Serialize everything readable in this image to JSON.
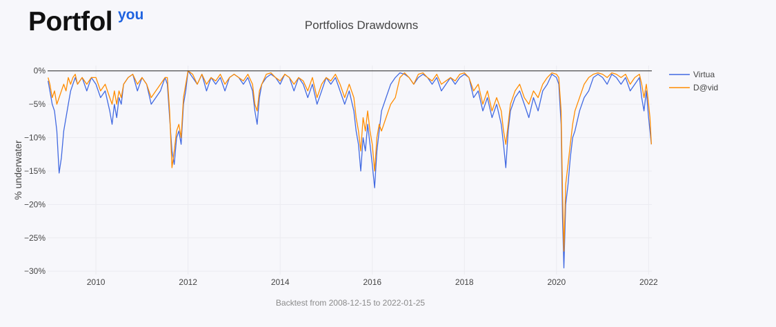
{
  "brand": {
    "name": "Portfol",
    "sup": "you",
    "accent": "#1f63e0"
  },
  "chart_data": {
    "type": "line",
    "title": "Portfolios Drawdowns",
    "xlabel": "Backtest from 2008-12-15 to 2022-01-25",
    "ylabel": "% underwater",
    "xlim": [
      2008.95,
      2022.07
    ],
    "ylim": [
      -30.5,
      0.8
    ],
    "xticks": [
      2010,
      2012,
      2014,
      2016,
      2018,
      2020,
      2022
    ],
    "yticks": [
      0,
      -5,
      -10,
      -15,
      -20,
      -25,
      -30
    ],
    "ytick_labels": [
      "0%",
      "−5%",
      "−10%",
      "−15%",
      "−20%",
      "−25%",
      "−30%"
    ],
    "grid": true,
    "legend_position": "top-right",
    "series": [
      {
        "name": "Virtua",
        "color": "#4169e1",
        "x": [
          2008.96,
          2009.0,
          2009.05,
          2009.1,
          2009.15,
          2009.2,
          2009.25,
          2009.3,
          2009.35,
          2009.4,
          2009.45,
          2009.5,
          2009.55,
          2009.6,
          2009.7,
          2009.8,
          2009.9,
          2010.0,
          2010.1,
          2010.2,
          2010.3,
          2010.35,
          2010.4,
          2010.45,
          2010.5,
          2010.55,
          2010.6,
          2010.7,
          2010.8,
          2010.9,
          2011.0,
          2011.1,
          2011.2,
          2011.3,
          2011.4,
          2011.5,
          2011.55,
          2011.6,
          2011.65,
          2011.7,
          2011.75,
          2011.8,
          2011.85,
          2011.9,
          2011.95,
          2012.0,
          2012.1,
          2012.2,
          2012.3,
          2012.4,
          2012.5,
          2012.6,
          2012.7,
          2012.8,
          2012.9,
          2013.0,
          2013.1,
          2013.2,
          2013.3,
          2013.4,
          2013.45,
          2013.5,
          2013.55,
          2013.6,
          2013.7,
          2013.8,
          2013.9,
          2014.0,
          2014.1,
          2014.2,
          2014.3,
          2014.4,
          2014.5,
          2014.6,
          2014.7,
          2014.8,
          2014.9,
          2015.0,
          2015.1,
          2015.2,
          2015.3,
          2015.4,
          2015.5,
          2015.6,
          2015.65,
          2015.7,
          2015.75,
          2015.8,
          2015.85,
          2015.9,
          2015.95,
          2016.0,
          2016.05,
          2016.1,
          2016.15,
          2016.2,
          2016.3,
          2016.4,
          2016.5,
          2016.6,
          2016.7,
          2016.8,
          2016.9,
          2017.0,
          2017.1,
          2017.2,
          2017.3,
          2017.4,
          2017.5,
          2017.6,
          2017.7,
          2017.8,
          2017.9,
          2018.0,
          2018.1,
          2018.2,
          2018.3,
          2018.4,
          2018.5,
          2018.6,
          2018.7,
          2018.8,
          2018.85,
          2018.9,
          2018.95,
          2019.0,
          2019.1,
          2019.2,
          2019.3,
          2019.4,
          2019.5,
          2019.6,
          2019.7,
          2019.8,
          2019.9,
          2020.0,
          2020.05,
          2020.1,
          2020.13,
          2020.16,
          2020.2,
          2020.25,
          2020.3,
          2020.35,
          2020.4,
          2020.5,
          2020.6,
          2020.7,
          2020.8,
          2020.9,
          2021.0,
          2021.1,
          2021.2,
          2021.3,
          2021.4,
          2021.5,
          2021.6,
          2021.7,
          2021.8,
          2021.85,
          2021.9,
          2021.95,
          2022.0,
          2022.03,
          2022.06
        ],
        "y": [
          -1.5,
          -3,
          -5,
          -6,
          -9,
          -15.3,
          -13,
          -9,
          -7,
          -5,
          -3,
          -2,
          -1,
          -2,
          -1,
          -3,
          -1,
          -2,
          -4,
          -3,
          -6,
          -8,
          -5,
          -7,
          -4,
          -5,
          -2,
          -1,
          -0.5,
          -3,
          -1,
          -2,
          -5,
          -4,
          -3,
          -1,
          -2,
          -7,
          -12,
          -14,
          -10,
          -9,
          -11,
          -5,
          -3,
          0,
          -1,
          -2,
          -0.5,
          -3,
          -1,
          -2,
          -1,
          -3,
          -1,
          -0.5,
          -1,
          -2,
          -1,
          -3,
          -6,
          -8,
          -4,
          -2,
          -1,
          -0.5,
          -1,
          -2,
          -0.5,
          -1,
          -3,
          -1,
          -2,
          -4,
          -2,
          -5,
          -3,
          -1,
          -2,
          -1,
          -3,
          -5,
          -3,
          -6,
          -9,
          -11,
          -15,
          -10,
          -12,
          -8,
          -11,
          -14,
          -17.5,
          -12,
          -9,
          -6,
          -4,
          -2,
          -1,
          -0.3,
          -0.5,
          -1,
          -2,
          -1,
          -0.5,
          -1,
          -2,
          -1,
          -3,
          -2,
          -1,
          -2,
          -1,
          -0.5,
          -1,
          -4,
          -3,
          -6,
          -4,
          -7,
          -5,
          -8,
          -11,
          -14.5,
          -9,
          -6,
          -4,
          -3,
          -5,
          -7,
          -4,
          -6,
          -3,
          -2,
          -0.5,
          -1,
          -2,
          -8,
          -22,
          -29.5,
          -20,
          -17,
          -13,
          -10,
          -9,
          -6,
          -4,
          -3,
          -1,
          -0.5,
          -1,
          -2,
          -0.5,
          -1,
          -2,
          -1,
          -3,
          -2,
          -1,
          -4,
          -6,
          -3,
          -7,
          -9,
          -11
        ]
      },
      {
        "name": "D@vid",
        "color": "#ff8c00",
        "x": [
          2008.96,
          2009.0,
          2009.05,
          2009.1,
          2009.15,
          2009.2,
          2009.25,
          2009.3,
          2009.35,
          2009.4,
          2009.45,
          2009.5,
          2009.55,
          2009.6,
          2009.7,
          2009.8,
          2009.9,
          2010.0,
          2010.1,
          2010.2,
          2010.3,
          2010.35,
          2010.4,
          2010.45,
          2010.5,
          2010.55,
          2010.6,
          2010.7,
          2010.8,
          2010.9,
          2011.0,
          2011.1,
          2011.2,
          2011.3,
          2011.4,
          2011.5,
          2011.55,
          2011.6,
          2011.65,
          2011.7,
          2011.75,
          2011.8,
          2011.85,
          2011.9,
          2011.95,
          2012.0,
          2012.1,
          2012.2,
          2012.3,
          2012.4,
          2012.5,
          2012.6,
          2012.7,
          2012.8,
          2012.9,
          2013.0,
          2013.1,
          2013.2,
          2013.3,
          2013.4,
          2013.45,
          2013.5,
          2013.55,
          2013.6,
          2013.7,
          2013.8,
          2013.9,
          2014.0,
          2014.1,
          2014.2,
          2014.3,
          2014.4,
          2014.5,
          2014.6,
          2014.7,
          2014.8,
          2014.9,
          2015.0,
          2015.1,
          2015.2,
          2015.3,
          2015.4,
          2015.5,
          2015.6,
          2015.65,
          2015.7,
          2015.75,
          2015.8,
          2015.85,
          2015.9,
          2015.95,
          2016.0,
          2016.05,
          2016.1,
          2016.15,
          2016.2,
          2016.3,
          2016.4,
          2016.5,
          2016.6,
          2016.7,
          2016.8,
          2016.9,
          2017.0,
          2017.1,
          2017.2,
          2017.3,
          2017.4,
          2017.5,
          2017.6,
          2017.7,
          2017.8,
          2017.9,
          2018.0,
          2018.1,
          2018.2,
          2018.3,
          2018.4,
          2018.5,
          2018.6,
          2018.7,
          2018.8,
          2018.85,
          2018.9,
          2018.95,
          2019.0,
          2019.1,
          2019.2,
          2019.3,
          2019.4,
          2019.5,
          2019.6,
          2019.7,
          2019.8,
          2019.9,
          2020.0,
          2020.05,
          2020.1,
          2020.13,
          2020.16,
          2020.2,
          2020.25,
          2020.3,
          2020.35,
          2020.4,
          2020.5,
          2020.6,
          2020.7,
          2020.8,
          2020.9,
          2021.0,
          2021.1,
          2021.2,
          2021.3,
          2021.4,
          2021.5,
          2021.6,
          2021.7,
          2021.8,
          2021.85,
          2021.9,
          2021.95,
          2022.0,
          2022.03,
          2022.06
        ],
        "y": [
          -1,
          -2,
          -4,
          -3,
          -5,
          -4,
          -3,
          -2,
          -3,
          -1,
          -2,
          -1,
          -0.5,
          -2,
          -1,
          -2,
          -1,
          -1,
          -3,
          -2,
          -4,
          -5,
          -3,
          -5,
          -3,
          -4,
          -2,
          -1,
          -0.5,
          -2,
          -1,
          -2,
          -4,
          -3,
          -2,
          -1,
          -1,
          -6,
          -14.5,
          -12,
          -9,
          -8,
          -10,
          -4,
          -2,
          0,
          -0.5,
          -2,
          -0.5,
          -2,
          -1,
          -1.5,
          -0.5,
          -2,
          -1,
          -0.5,
          -1,
          -1.5,
          -0.5,
          -2,
          -5,
          -6,
          -3,
          -2,
          -0.5,
          -0.3,
          -1,
          -1.5,
          -0.5,
          -1,
          -2,
          -1,
          -1.5,
          -3,
          -1,
          -4,
          -2,
          -1,
          -1.5,
          -0.5,
          -2,
          -4,
          -2,
          -4,
          -7,
          -9,
          -12,
          -7,
          -9,
          -6,
          -9,
          -11,
          -15,
          -10,
          -8,
          -9,
          -7,
          -5,
          -4,
          -1,
          -0.3,
          -1,
          -2,
          -0.5,
          -0.3,
          -1,
          -1.5,
          -0.5,
          -2,
          -1.5,
          -1,
          -1.5,
          -0.5,
          -0.3,
          -1,
          -3,
          -2,
          -5,
          -3,
          -6,
          -4,
          -6,
          -9,
          -11,
          -8,
          -5,
          -3,
          -2,
          -4,
          -5,
          -3,
          -4,
          -2,
          -1,
          -0.3,
          -0.5,
          -1,
          -6,
          -18,
          -27,
          -17,
          -14,
          -11,
          -8,
          -6,
          -4,
          -2,
          -1,
          -0.5,
          -0.3,
          -0.5,
          -1,
          -0.3,
          -0.5,
          -1,
          -0.5,
          -2,
          -1,
          -0.5,
          -2,
          -4,
          -2,
          -5,
          -7,
          -11
        ]
      }
    ]
  }
}
